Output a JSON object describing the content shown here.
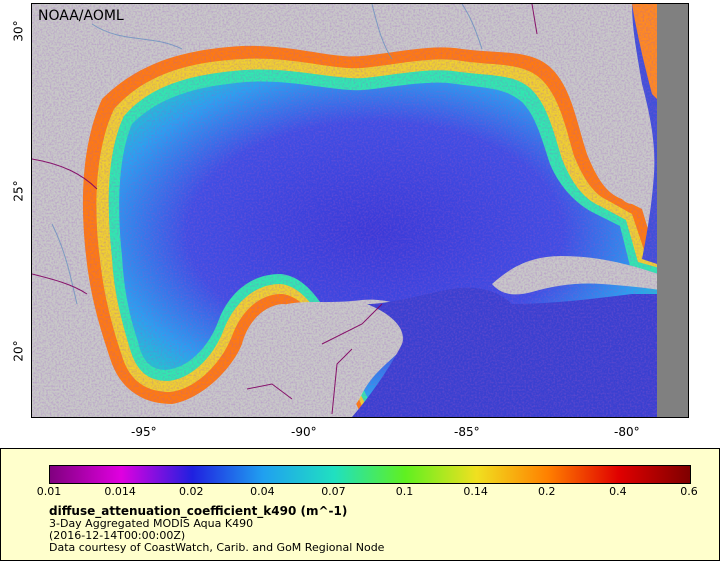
{
  "map": {
    "credit": "NOAA/AOML",
    "lon_labels": [
      "-95°",
      "-90°",
      "-85°",
      "-80°"
    ],
    "lat_labels": [
      "30°",
      "25°",
      "20°"
    ]
  },
  "legend": {
    "ticks": [
      "0.01",
      "0.014",
      "0.02",
      "0.04",
      "0.07",
      "0.1",
      "0.14",
      "0.2",
      "0.4",
      "0.6"
    ],
    "title": "diffuse_attenuation_coefficient_k490 (m^-1)",
    "subtitle": "3-Day Aggregated MODIS Aqua K490",
    "date": "(2016-12-14T00:00:00Z)",
    "source": "Data courtesy of CoastWatch, Carib. and GoM Regional Node",
    "colors": [
      "#80007f",
      "#e000e0",
      "#2020e0",
      "#20a0f0",
      "#20e0c0",
      "#60f020",
      "#f0e020",
      "#ff8000",
      "#e00000",
      "#7f0000"
    ]
  }
}
